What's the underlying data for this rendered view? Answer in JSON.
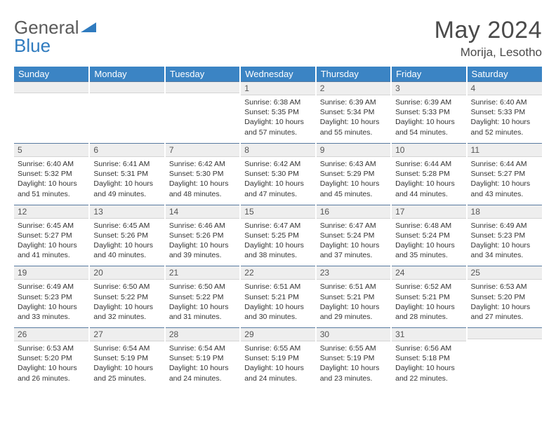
{
  "logo": {
    "text1": "General",
    "text2": "Blue",
    "icon_color": "#2f7bbf"
  },
  "title": "May 2024",
  "location": "Morija, Lesotho",
  "header_bg": "#3b84c4",
  "daynum_bg": "#eeeeee",
  "border_top_color": "#577aa0",
  "days_of_week": [
    "Sunday",
    "Monday",
    "Tuesday",
    "Wednesday",
    "Thursday",
    "Friday",
    "Saturday"
  ],
  "weeks": [
    [
      {
        "n": "",
        "sr": "",
        "ss": "",
        "dl": ""
      },
      {
        "n": "",
        "sr": "",
        "ss": "",
        "dl": ""
      },
      {
        "n": "",
        "sr": "",
        "ss": "",
        "dl": ""
      },
      {
        "n": "1",
        "sr": "Sunrise: 6:38 AM",
        "ss": "Sunset: 5:35 PM",
        "dl": "Daylight: 10 hours and 57 minutes."
      },
      {
        "n": "2",
        "sr": "Sunrise: 6:39 AM",
        "ss": "Sunset: 5:34 PM",
        "dl": "Daylight: 10 hours and 55 minutes."
      },
      {
        "n": "3",
        "sr": "Sunrise: 6:39 AM",
        "ss": "Sunset: 5:33 PM",
        "dl": "Daylight: 10 hours and 54 minutes."
      },
      {
        "n": "4",
        "sr": "Sunrise: 6:40 AM",
        "ss": "Sunset: 5:33 PM",
        "dl": "Daylight: 10 hours and 52 minutes."
      }
    ],
    [
      {
        "n": "5",
        "sr": "Sunrise: 6:40 AM",
        "ss": "Sunset: 5:32 PM",
        "dl": "Daylight: 10 hours and 51 minutes."
      },
      {
        "n": "6",
        "sr": "Sunrise: 6:41 AM",
        "ss": "Sunset: 5:31 PM",
        "dl": "Daylight: 10 hours and 49 minutes."
      },
      {
        "n": "7",
        "sr": "Sunrise: 6:42 AM",
        "ss": "Sunset: 5:30 PM",
        "dl": "Daylight: 10 hours and 48 minutes."
      },
      {
        "n": "8",
        "sr": "Sunrise: 6:42 AM",
        "ss": "Sunset: 5:30 PM",
        "dl": "Daylight: 10 hours and 47 minutes."
      },
      {
        "n": "9",
        "sr": "Sunrise: 6:43 AM",
        "ss": "Sunset: 5:29 PM",
        "dl": "Daylight: 10 hours and 45 minutes."
      },
      {
        "n": "10",
        "sr": "Sunrise: 6:44 AM",
        "ss": "Sunset: 5:28 PM",
        "dl": "Daylight: 10 hours and 44 minutes."
      },
      {
        "n": "11",
        "sr": "Sunrise: 6:44 AM",
        "ss": "Sunset: 5:27 PM",
        "dl": "Daylight: 10 hours and 43 minutes."
      }
    ],
    [
      {
        "n": "12",
        "sr": "Sunrise: 6:45 AM",
        "ss": "Sunset: 5:27 PM",
        "dl": "Daylight: 10 hours and 41 minutes."
      },
      {
        "n": "13",
        "sr": "Sunrise: 6:45 AM",
        "ss": "Sunset: 5:26 PM",
        "dl": "Daylight: 10 hours and 40 minutes."
      },
      {
        "n": "14",
        "sr": "Sunrise: 6:46 AM",
        "ss": "Sunset: 5:26 PM",
        "dl": "Daylight: 10 hours and 39 minutes."
      },
      {
        "n": "15",
        "sr": "Sunrise: 6:47 AM",
        "ss": "Sunset: 5:25 PM",
        "dl": "Daylight: 10 hours and 38 minutes."
      },
      {
        "n": "16",
        "sr": "Sunrise: 6:47 AM",
        "ss": "Sunset: 5:24 PM",
        "dl": "Daylight: 10 hours and 37 minutes."
      },
      {
        "n": "17",
        "sr": "Sunrise: 6:48 AM",
        "ss": "Sunset: 5:24 PM",
        "dl": "Daylight: 10 hours and 35 minutes."
      },
      {
        "n": "18",
        "sr": "Sunrise: 6:49 AM",
        "ss": "Sunset: 5:23 PM",
        "dl": "Daylight: 10 hours and 34 minutes."
      }
    ],
    [
      {
        "n": "19",
        "sr": "Sunrise: 6:49 AM",
        "ss": "Sunset: 5:23 PM",
        "dl": "Daylight: 10 hours and 33 minutes."
      },
      {
        "n": "20",
        "sr": "Sunrise: 6:50 AM",
        "ss": "Sunset: 5:22 PM",
        "dl": "Daylight: 10 hours and 32 minutes."
      },
      {
        "n": "21",
        "sr": "Sunrise: 6:50 AM",
        "ss": "Sunset: 5:22 PM",
        "dl": "Daylight: 10 hours and 31 minutes."
      },
      {
        "n": "22",
        "sr": "Sunrise: 6:51 AM",
        "ss": "Sunset: 5:21 PM",
        "dl": "Daylight: 10 hours and 30 minutes."
      },
      {
        "n": "23",
        "sr": "Sunrise: 6:51 AM",
        "ss": "Sunset: 5:21 PM",
        "dl": "Daylight: 10 hours and 29 minutes."
      },
      {
        "n": "24",
        "sr": "Sunrise: 6:52 AM",
        "ss": "Sunset: 5:21 PM",
        "dl": "Daylight: 10 hours and 28 minutes."
      },
      {
        "n": "25",
        "sr": "Sunrise: 6:53 AM",
        "ss": "Sunset: 5:20 PM",
        "dl": "Daylight: 10 hours and 27 minutes."
      }
    ],
    [
      {
        "n": "26",
        "sr": "Sunrise: 6:53 AM",
        "ss": "Sunset: 5:20 PM",
        "dl": "Daylight: 10 hours and 26 minutes."
      },
      {
        "n": "27",
        "sr": "Sunrise: 6:54 AM",
        "ss": "Sunset: 5:19 PM",
        "dl": "Daylight: 10 hours and 25 minutes."
      },
      {
        "n": "28",
        "sr": "Sunrise: 6:54 AM",
        "ss": "Sunset: 5:19 PM",
        "dl": "Daylight: 10 hours and 24 minutes."
      },
      {
        "n": "29",
        "sr": "Sunrise: 6:55 AM",
        "ss": "Sunset: 5:19 PM",
        "dl": "Daylight: 10 hours and 24 minutes."
      },
      {
        "n": "30",
        "sr": "Sunrise: 6:55 AM",
        "ss": "Sunset: 5:19 PM",
        "dl": "Daylight: 10 hours and 23 minutes."
      },
      {
        "n": "31",
        "sr": "Sunrise: 6:56 AM",
        "ss": "Sunset: 5:18 PM",
        "dl": "Daylight: 10 hours and 22 minutes."
      },
      {
        "n": "",
        "sr": "",
        "ss": "",
        "dl": ""
      }
    ]
  ]
}
